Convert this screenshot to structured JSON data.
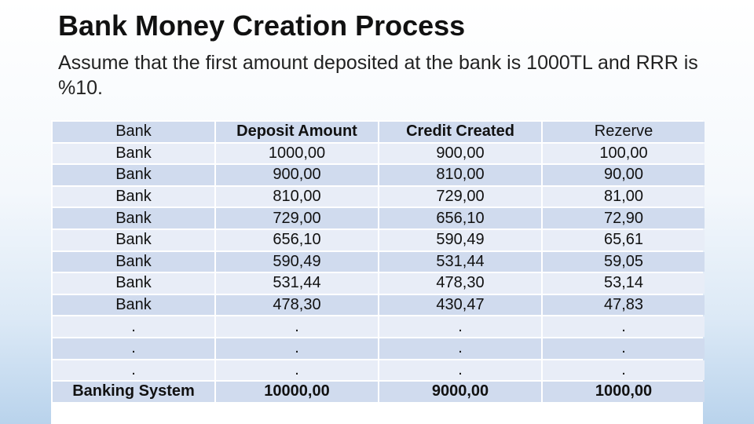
{
  "slide": {
    "title": "Bank Money Creation Process",
    "subtitle": "Assume that the first amount deposited at the bank is 1000TL and RRR is %10."
  },
  "table": {
    "headers": [
      "Bank",
      "Deposit Amount",
      "Credit Created",
      "Rezerve"
    ],
    "rows": [
      [
        "Bank",
        "1000,00",
        "900,00",
        "100,00"
      ],
      [
        "Bank",
        "900,00",
        "810,00",
        "90,00"
      ],
      [
        "Bank",
        "810,00",
        "729,00",
        "81,00"
      ],
      [
        "Bank",
        "729,00",
        "656,10",
        "72,90"
      ],
      [
        "Bank",
        "656,10",
        "590,49",
        "65,61"
      ],
      [
        "Bank",
        "590,49",
        "531,44",
        "59,05"
      ],
      [
        "Bank",
        "531,44",
        "478,30",
        "53,14"
      ],
      [
        "Bank",
        "478,30",
        "430,47",
        "47,83"
      ],
      [
        ".",
        ".",
        ".",
        "."
      ],
      [
        ".",
        ".",
        ".",
        "."
      ],
      [
        ".",
        ".",
        ".",
        "."
      ]
    ],
    "totals": [
      "Banking System",
      "10000,00",
      "9000,00",
      "1000,00"
    ]
  }
}
